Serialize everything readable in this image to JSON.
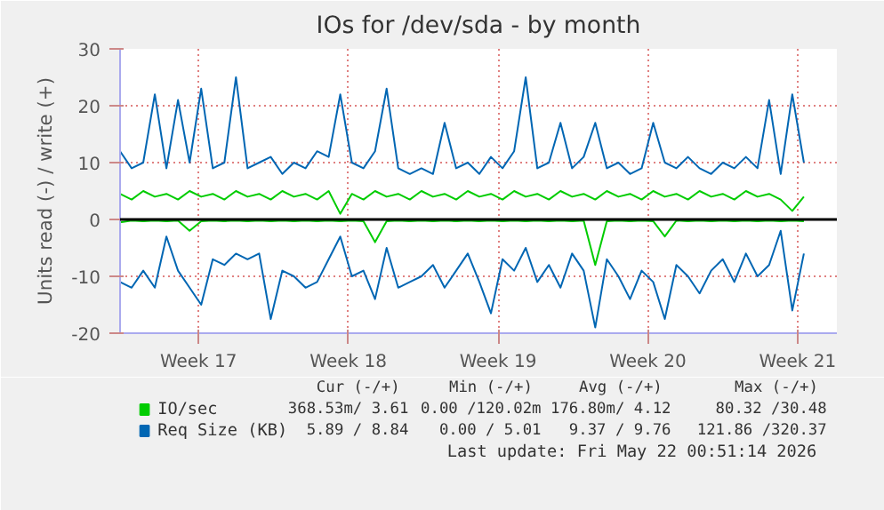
{
  "chart_data": {
    "type": "line",
    "title": "IOs for /dev/sda - by month",
    "ylabel": "Units read (-) / write (+)",
    "x": [
      "2026-04-19T20:00",
      "2026-04-20T09:00",
      "2026-04-20T22:00",
      "2026-04-21T11:00",
      "2026-04-22T00:00",
      "2026-04-22T13:00",
      "2026-04-23T02:00",
      "2026-04-23T15:00",
      "2026-04-24T04:00",
      "2026-04-24T17:00",
      "2026-04-25T06:00",
      "2026-04-25T19:00",
      "2026-04-26T08:00",
      "2026-04-26T21:00",
      "2026-04-27T10:00",
      "2026-04-27T23:00",
      "2026-04-28T12:00",
      "2026-04-29T01:00",
      "2026-04-29T14:00",
      "2026-04-30T03:00",
      "2026-04-30T16:00",
      "2026-05-01T05:00",
      "2026-05-01T18:00",
      "2026-05-02T07:00",
      "2026-05-02T20:00",
      "2026-05-03T09:00",
      "2026-05-03T22:00",
      "2026-05-04T11:00",
      "2026-05-05T00:00",
      "2026-05-05T13:00",
      "2026-05-06T02:00",
      "2026-05-06T15:00",
      "2026-05-07T04:00",
      "2026-05-07T17:00",
      "2026-05-08T06:00",
      "2026-05-08T19:00",
      "2026-05-09T08:00",
      "2026-05-09T21:00",
      "2026-05-10T10:00",
      "2026-05-10T23:00",
      "2026-05-11T12:00",
      "2026-05-12T01:00",
      "2026-05-12T14:00",
      "2026-05-13T03:00",
      "2026-05-13T16:00",
      "2026-05-14T05:00",
      "2026-05-14T18:00",
      "2026-05-15T07:00",
      "2026-05-15T20:00",
      "2026-05-16T09:00",
      "2026-05-16T22:00",
      "2026-05-17T11:00",
      "2026-05-18T00:00",
      "2026-05-18T13:00",
      "2026-05-19T02:00",
      "2026-05-19T15:00",
      "2026-05-20T04:00",
      "2026-05-20T17:00",
      "2026-05-21T06:00",
      "2026-05-21T19:00"
    ],
    "series": [
      {
        "name": "IO/sec",
        "color": "#00cc00",
        "values": [
          4.5,
          3.5,
          5,
          4,
          4.5,
          3.5,
          5,
          4,
          4.5,
          3.5,
          5,
          4,
          4.5,
          3.5,
          5,
          4,
          4.5,
          3.5,
          5,
          1,
          4.5,
          3.5,
          5,
          4,
          4.5,
          3.5,
          5,
          4,
          4.5,
          3.5,
          5,
          4,
          4.5,
          3.5,
          5,
          4,
          4.5,
          3.5,
          5,
          4,
          4.5,
          3.5,
          5,
          4,
          4.5,
          3.5,
          5,
          4,
          4.5,
          3.5,
          5,
          4,
          4.5,
          3.5,
          5,
          4,
          4.5,
          3.5,
          1.5,
          4
        ]
      },
      {
        "color": "#00cc00",
        "values": [
          -0.5,
          -0.2,
          -0.3,
          -0.2,
          -0.3,
          -0.2,
          -2,
          -0.3,
          -0.2,
          -0.3,
          -0.2,
          -0.3,
          -0.2,
          -0.3,
          -0.2,
          -0.3,
          -0.2,
          -0.3,
          -0.2,
          -0.3,
          -0.2,
          -0.3,
          -4,
          -0.3,
          -0.2,
          -0.3,
          -0.2,
          -0.3,
          -0.2,
          -0.3,
          -0.2,
          -0.3,
          -0.2,
          -0.3,
          -0.2,
          -0.3,
          -0.2,
          -0.3,
          -0.2,
          -0.3,
          -0.2,
          -8,
          -0.3,
          -0.2,
          -0.3,
          -0.2,
          -0.3,
          -3,
          -0.2,
          -0.3,
          -0.2,
          -0.3,
          -0.2,
          -0.3,
          -0.2,
          -0.3,
          -0.2,
          -0.3,
          -0.2,
          -0.3
        ]
      },
      {
        "name": "Req Size (KB)",
        "color": "#0066b3",
        "values": [
          12,
          9,
          10,
          22,
          9,
          21,
          10,
          23,
          9,
          10,
          25,
          9,
          10,
          11,
          8,
          10,
          9,
          12,
          11,
          22,
          10,
          9,
          12,
          23,
          9,
          8,
          9,
          8,
          17,
          9,
          10,
          8,
          11,
          9,
          12,
          25,
          9,
          10,
          17,
          9,
          11,
          17,
          9,
          10,
          8,
          9,
          17,
          10,
          9,
          11,
          9,
          8,
          10,
          9,
          11,
          9,
          21,
          8,
          22,
          10
        ]
      },
      {
        "color": "#0066b3",
        "values": [
          -11,
          -12,
          -9,
          -12,
          -3,
          -9,
          -12,
          -15,
          -7,
          -8,
          -6,
          -7,
          -6,
          -17.5,
          -9,
          -10,
          -12,
          -11,
          -7,
          -3,
          -10,
          -9,
          -14,
          -5,
          -12,
          -11,
          -10,
          -8,
          -12,
          -9,
          -6,
          -11,
          -16.5,
          -7,
          -9,
          -5,
          -11,
          -8,
          -12,
          -6,
          -9,
          -19,
          -7,
          -10,
          -14,
          -9,
          -11,
          -17.5,
          -8,
          -10,
          -13,
          -9,
          -7,
          -11,
          -6,
          -10,
          -8,
          -2,
          -16,
          -6
        ]
      }
    ],
    "xlim": [
      "2026-04-19T20:00",
      "2026-05-23T08:00"
    ],
    "xticks": [
      {
        "value": "2026-04-23T12:00",
        "label": "Week 17"
      },
      {
        "value": "2026-04-30T12:00",
        "label": "Week 18"
      },
      {
        "value": "2026-05-07T12:00",
        "label": "Week 19"
      },
      {
        "value": "2026-05-14T12:00",
        "label": "Week 20"
      },
      {
        "value": "2026-05-21T12:00",
        "label": "Week 21"
      }
    ],
    "ylim": [
      -20,
      30
    ],
    "yticks": [
      -20,
      -10,
      0,
      10,
      20,
      30
    ],
    "ref_lines": [
      {
        "axis": "y",
        "value": 0,
        "color": "#000000"
      }
    ],
    "grid": true,
    "legend": "bottom",
    "annotations": [
      "Cur (-/+)",
      "Min (-/+)",
      "Avg (-/+)",
      "Max (-/+)",
      "368.53m/ 3.61",
      "0.00 /120.02m",
      "176.80m/ 4.12",
      "80.32 /30.48",
      "5.89 / 8.84",
      "0.00 / 5.01",
      "9.37 / 9.76",
      "121.86 /320.37",
      "Last update: Fri May 22 00:51:14 2026"
    ]
  }
}
